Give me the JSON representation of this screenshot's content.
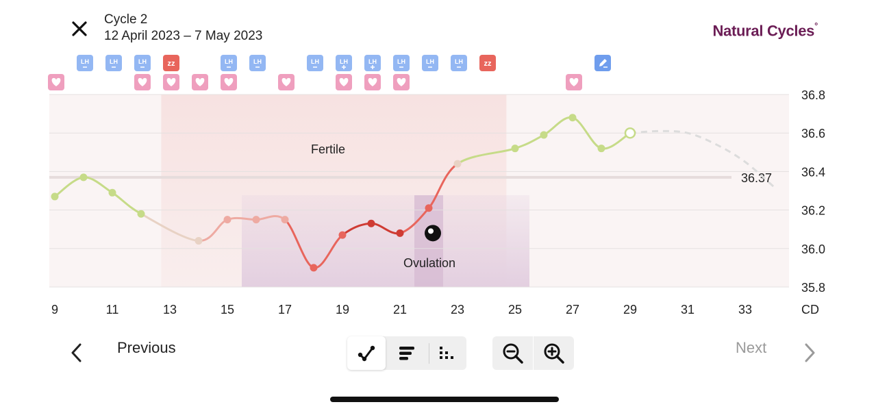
{
  "header": {
    "cycle_title": "Cycle 2",
    "cycle_dates": "12 April 2023 – 7 May 2023",
    "brand_name": "Natural Cycles",
    "brand_mark": "°"
  },
  "chart_data": {
    "type": "line",
    "xlabel": "CD",
    "x_ticks": [
      9,
      11,
      13,
      15,
      17,
      19,
      21,
      23,
      25,
      27,
      29,
      31,
      33
    ],
    "y_ticks": [
      36.8,
      36.6,
      36.4,
      36.2,
      36.0,
      35.8
    ],
    "ylim": [
      35.8,
      36.8
    ],
    "xlim": [
      9,
      34.5
    ],
    "coverline": 36.37,
    "coverline_label": "36.37",
    "series": [
      {
        "points": [
          {
            "x": 9,
            "y": 36.27,
            "state": "green"
          },
          {
            "x": 10,
            "y": 36.37,
            "state": "green"
          },
          {
            "x": 11,
            "y": 36.29,
            "state": "green"
          },
          {
            "x": 12,
            "y": 36.18,
            "state": "green"
          },
          {
            "x": 14,
            "y": 36.04,
            "state": "beige"
          },
          {
            "x": 15,
            "y": 36.15,
            "state": "pink"
          },
          {
            "x": 16,
            "y": 36.15,
            "state": "pink"
          },
          {
            "x": 17,
            "y": 36.15,
            "state": "pink"
          },
          {
            "x": 18,
            "y": 35.9,
            "state": "red"
          },
          {
            "x": 19,
            "y": 36.07,
            "state": "red"
          },
          {
            "x": 20,
            "y": 36.13,
            "state": "darkred"
          },
          {
            "x": 21,
            "y": 36.08,
            "state": "darkred"
          },
          {
            "x": 22,
            "y": 36.21,
            "state": "red"
          },
          {
            "x": 23,
            "y": 36.44,
            "state": "beige"
          },
          {
            "x": 25,
            "y": 36.52,
            "state": "green"
          },
          {
            "x": 26,
            "y": 36.59,
            "state": "green"
          },
          {
            "x": 27,
            "y": 36.68,
            "state": "green"
          },
          {
            "x": 28,
            "y": 36.52,
            "state": "green"
          },
          {
            "x": 29,
            "y": 36.6,
            "state": "open"
          }
        ],
        "prediction": [
          {
            "x": 29,
            "y": 36.6
          },
          {
            "x": 30,
            "y": 36.61
          },
          {
            "x": 31,
            "y": 36.6
          },
          {
            "x": 32,
            "y": 36.54
          },
          {
            "x": 33,
            "y": 36.45
          },
          {
            "x": 34,
            "y": 36.32
          }
        ]
      }
    ],
    "bands": {
      "fertile": {
        "from": 12.7,
        "to": 24.7,
        "label": "Fertile"
      },
      "ovulation": {
        "from": 15.5,
        "to": 25.5,
        "peak_from": 21.5,
        "peak_to": 22.5,
        "label": "Ovulation"
      }
    },
    "ovulation_marker_x": 22,
    "ovulation_marker_y": 36.08,
    "top_icons": [
      {
        "x": 10,
        "row": 0,
        "type": "lh-neg",
        "text": "LH"
      },
      {
        "x": 11,
        "row": 0,
        "type": "lh-neg",
        "text": "LH"
      },
      {
        "x": 12,
        "row": 0,
        "type": "lh-neg",
        "text": "LH"
      },
      {
        "x": 13,
        "row": 0,
        "type": "sleep",
        "text": "zz"
      },
      {
        "x": 15,
        "row": 0,
        "type": "lh-neg",
        "text": "LH"
      },
      {
        "x": 16,
        "row": 0,
        "type": "lh-neg",
        "text": "LH"
      },
      {
        "x": 18,
        "row": 0,
        "type": "lh-neg",
        "text": "LH"
      },
      {
        "x": 19,
        "row": 0,
        "type": "lh-pos",
        "text": "LH"
      },
      {
        "x": 20,
        "row": 0,
        "type": "lh-pos",
        "text": "LH"
      },
      {
        "x": 21,
        "row": 0,
        "type": "lh-neg",
        "text": "LH"
      },
      {
        "x": 22,
        "row": 0,
        "type": "lh-neg",
        "text": "LH"
      },
      {
        "x": 23,
        "row": 0,
        "type": "lh-neg",
        "text": "LH"
      },
      {
        "x": 24,
        "row": 0,
        "type": "sleep",
        "text": "zz"
      },
      {
        "x": 28,
        "row": 0,
        "type": "note",
        "text": ""
      },
      {
        "x": 9,
        "row": 1,
        "type": "heart",
        "text": ""
      },
      {
        "x": 12,
        "row": 1,
        "type": "heart",
        "text": ""
      },
      {
        "x": 13,
        "row": 1,
        "type": "heart",
        "text": ""
      },
      {
        "x": 14,
        "row": 1,
        "type": "heart",
        "text": ""
      },
      {
        "x": 15,
        "row": 1,
        "type": "heart",
        "text": ""
      },
      {
        "x": 17,
        "row": 1,
        "type": "heart",
        "text": ""
      },
      {
        "x": 19,
        "row": 1,
        "type": "heart",
        "text": ""
      },
      {
        "x": 20,
        "row": 1,
        "type": "heart",
        "text": ""
      },
      {
        "x": 21,
        "row": 1,
        "type": "heart",
        "text": ""
      },
      {
        "x": 27,
        "row": 1,
        "type": "heart",
        "text": ""
      }
    ],
    "colors": {
      "green": "#c6db88",
      "beige": "#e8d2c4",
      "pink": "#eeaaa2",
      "red": "#e8655c",
      "darkred": "#cf3b33",
      "fertile_band": "#f7e2e1",
      "ovulation_band": "#e3cfe0",
      "ovulation_peak": "#d6b9d2",
      "coverline": "#e6dcdc",
      "lh": "#93b7f3",
      "sleep": "#e8655c",
      "heart": "#ef9fbe",
      "note": "#6f9ded"
    }
  },
  "footer": {
    "previous_label": "Previous",
    "next_label": "Next"
  }
}
